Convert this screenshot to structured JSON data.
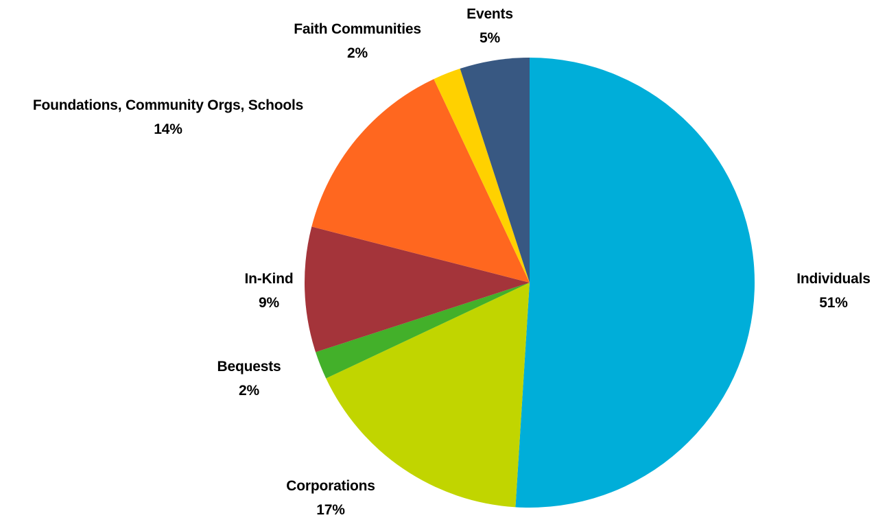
{
  "chart_data": {
    "type": "pie",
    "start_angle_deg": 0,
    "direction": "clockwise",
    "slices": [
      {
        "label": "Individuals",
        "value": 51,
        "value_label": "51%",
        "color": "#00AED9"
      },
      {
        "label": "Corporations",
        "value": 17,
        "value_label": "17%",
        "color": "#C1D500"
      },
      {
        "label": "Bequests",
        "value": 2,
        "value_label": "2%",
        "color": "#43B02A"
      },
      {
        "label": "In-Kind",
        "value": 9,
        "value_label": "9%",
        "color": "#A4343A"
      },
      {
        "label": "Foundations, Community Orgs, Schools",
        "value": 14,
        "value_label": "14%",
        "color": "#FF671F"
      },
      {
        "label": "Faith Communities",
        "value": 2,
        "value_label": "2%",
        "color": "#FFD100"
      },
      {
        "label": "Events",
        "value": 5,
        "value_label": "5%",
        "color": "#385882"
      }
    ]
  }
}
